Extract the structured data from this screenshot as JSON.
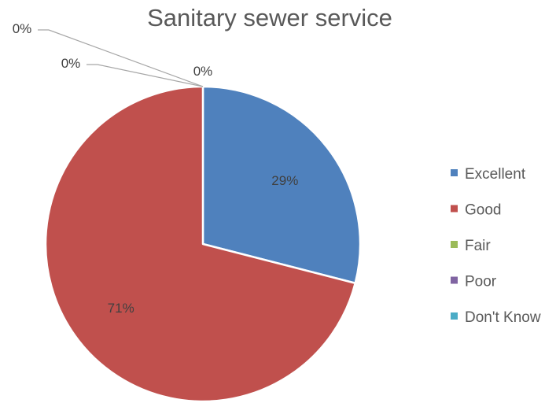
{
  "chart_data": {
    "type": "pie",
    "title": "Sanitary sewer service",
    "categories": [
      "Excellent",
      "Good",
      "Fair",
      "Poor",
      "Don't Know"
    ],
    "values": [
      29,
      71,
      0,
      0,
      0
    ],
    "data_labels": [
      "29%",
      "71%",
      "0%",
      "0%",
      "0%"
    ],
    "colors": [
      "#4f81bd",
      "#c0504d",
      "#9bbb59",
      "#8064a2",
      "#4bacc6"
    ],
    "legend_position": "right"
  }
}
